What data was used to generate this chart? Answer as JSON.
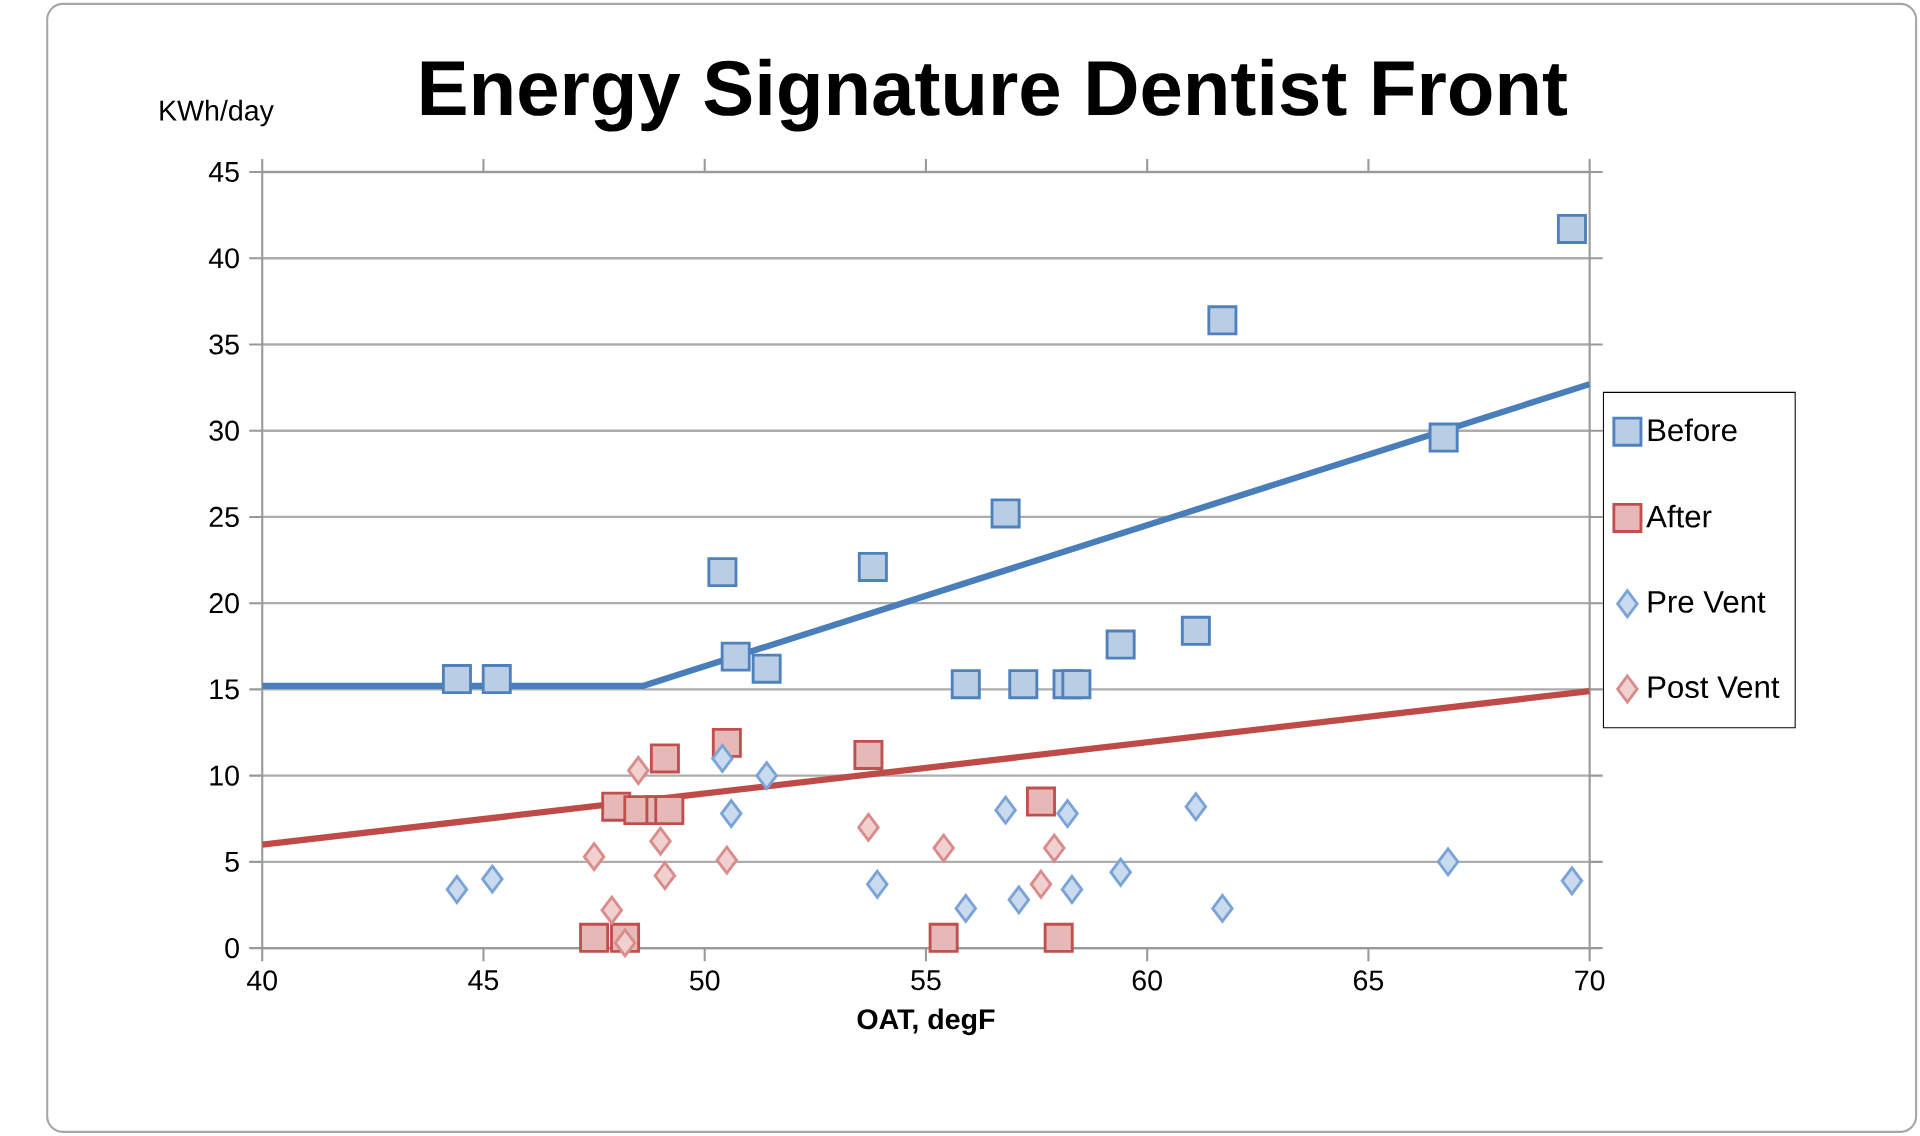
{
  "chart_data": {
    "type": "scatter",
    "title": "Energy Signature Dentist Front",
    "xlabel": "OAT, degF",
    "ylabel": "KWh/day",
    "xlim": [
      40,
      70
    ],
    "xticks": [
      40,
      45,
      50,
      55,
      60,
      65,
      70
    ],
    "ylim": [
      0,
      45
    ],
    "yticks": [
      0,
      5,
      10,
      15,
      20,
      25,
      30,
      35,
      40,
      45
    ],
    "grid": "y",
    "legend": "right",
    "series": [
      {
        "name": "Before",
        "marker": "square",
        "color": "#4f81bd",
        "x": [
          44.4,
          45.3,
          50.4,
          50.7,
          51.4,
          53.8,
          55.9,
          56.8,
          57.2,
          58.2,
          58.4,
          59.4,
          61.1,
          61.7,
          66.7,
          69.6
        ],
        "values": [
          15.6,
          15.6,
          21.8,
          16.9,
          16.2,
          22.1,
          15.3,
          25.2,
          15.3,
          15.3,
          15.3,
          17.6,
          18.4,
          36.4,
          29.6,
          41.7
        ]
      },
      {
        "name": "After",
        "marker": "square",
        "color": "#c0504d",
        "x": [
          47.5,
          48.2,
          48.0,
          48.5,
          49.0,
          49.2,
          49.1,
          50.5,
          53.7,
          55.4,
          57.6,
          58.0
        ],
        "values": [
          0.6,
          0.6,
          8.2,
          8.0,
          8.0,
          8.0,
          11.0,
          11.9,
          11.2,
          0.6,
          8.5,
          0.6
        ]
      },
      {
        "name": "Pre Vent",
        "marker": "diamond",
        "color": "#7aa3d6",
        "x": [
          44.4,
          45.2,
          50.4,
          50.6,
          51.4,
          53.9,
          55.9,
          56.8,
          57.1,
          58.2,
          58.3,
          59.4,
          61.1,
          61.7,
          66.8,
          69.6
        ],
        "values": [
          3.4,
          4.0,
          11.0,
          7.8,
          10.0,
          3.7,
          2.3,
          8.0,
          2.8,
          7.8,
          3.4,
          4.4,
          8.2,
          2.3,
          5.0,
          3.9
        ]
      },
      {
        "name": "Post Vent",
        "marker": "diamond",
        "color": "#d98c8a",
        "x": [
          47.5,
          47.9,
          48.2,
          48.5,
          49.0,
          49.1,
          50.5,
          53.7,
          55.4,
          57.6,
          57.9
        ],
        "values": [
          5.3,
          2.2,
          0.3,
          10.3,
          6.2,
          4.2,
          5.1,
          7.0,
          5.8,
          3.7,
          5.8
        ]
      },
      {
        "type": "line",
        "marker": "none",
        "color": "#4a7ebb",
        "x": [
          40,
          48.6,
          70
        ],
        "values": [
          15.2,
          15.2,
          32.7
        ]
      },
      {
        "type": "line",
        "marker": "none",
        "color": "#be4b48",
        "x": [
          40,
          70
        ],
        "values": [
          6.0,
          14.9
        ]
      }
    ]
  }
}
